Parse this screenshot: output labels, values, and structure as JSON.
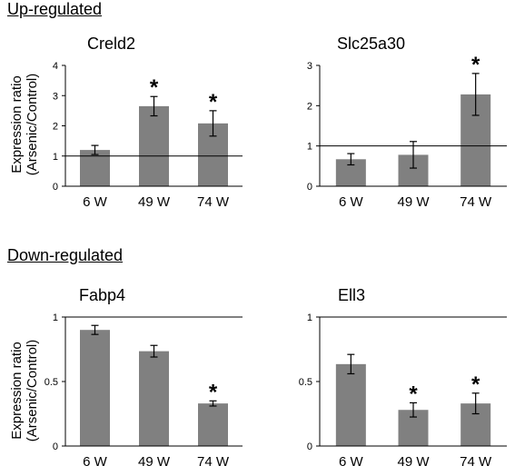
{
  "sections": {
    "up": "Up-regulated",
    "down": "Down-regulated"
  },
  "ylabel": [
    "Expression ratio",
    "(Arsenic/Control)"
  ],
  "colors": {
    "bar": "#808080",
    "axis": "#000000",
    "reference_line": "#000000"
  },
  "chart_data": [
    {
      "type": "bar",
      "title": "Creld2",
      "categories": [
        "6 W",
        "49 W",
        "74 W"
      ],
      "values": [
        1.2,
        2.65,
        2.08
      ],
      "errors": [
        0.15,
        0.32,
        0.42
      ],
      "significant": [
        false,
        true,
        true
      ],
      "significance_marker": "*",
      "ylim": [
        0,
        4
      ],
      "yticks": [
        "0",
        "1",
        "2",
        "3",
        "4"
      ],
      "reference_line": 1
    },
    {
      "type": "bar",
      "title": "Slc25a30",
      "categories": [
        "6 W",
        "49 W",
        "74 W"
      ],
      "values": [
        0.67,
        0.78,
        2.28
      ],
      "errors": [
        0.14,
        0.33,
        0.52
      ],
      "significant": [
        false,
        false,
        true
      ],
      "significance_marker": "*",
      "ylim": [
        0,
        3
      ],
      "yticks": [
        "0",
        "1",
        "2",
        "3"
      ],
      "reference_line": 1
    },
    {
      "type": "bar",
      "title": "Fabp4",
      "categories": [
        "6 W",
        "49 W",
        "74 W"
      ],
      "values": [
        0.9,
        0.735,
        0.33
      ],
      "errors": [
        0.035,
        0.045,
        0.02
      ],
      "significant": [
        false,
        false,
        true
      ],
      "significance_marker": "*",
      "ylim": [
        0,
        1
      ],
      "yticks": [
        "0",
        "0.5",
        "1"
      ],
      "reference_line": 1
    },
    {
      "type": "bar",
      "title": "Ell3",
      "categories": [
        "6 W",
        "49 W",
        "74 W"
      ],
      "values": [
        0.635,
        0.28,
        0.33
      ],
      "errors": [
        0.075,
        0.055,
        0.08
      ],
      "significant": [
        false,
        true,
        true
      ],
      "significance_marker": "*",
      "ylim": [
        0,
        1
      ],
      "yticks": [
        "0",
        "0.5",
        "1"
      ],
      "reference_line": 1
    }
  ]
}
